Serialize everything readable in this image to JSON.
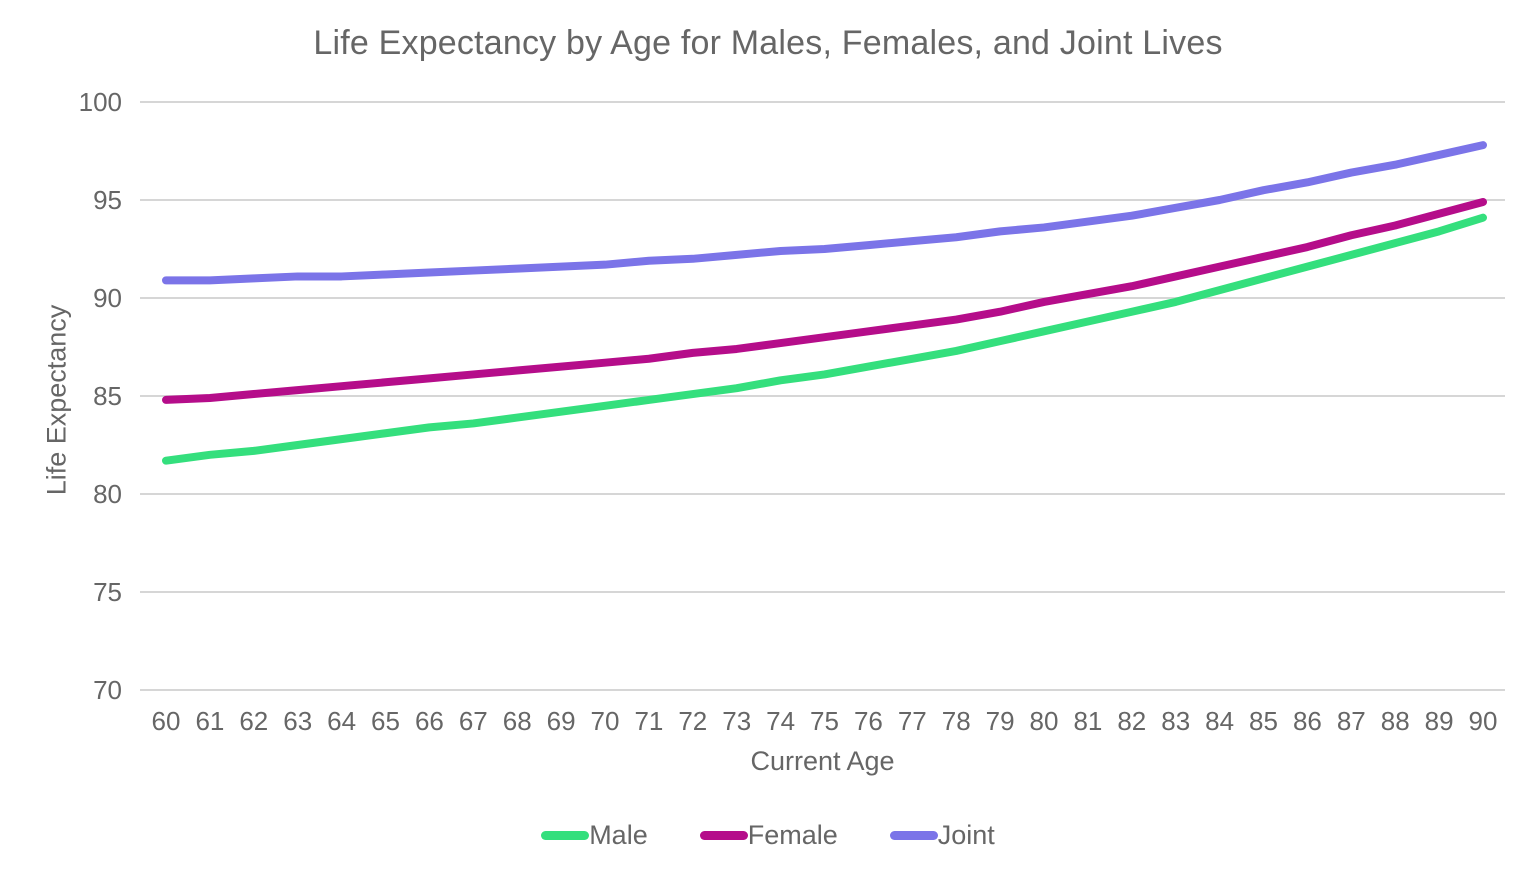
{
  "chart": {
    "title": "Life Expectancy by Age for Males, Females, and Joint Lives",
    "xlabel": "Current Age",
    "ylabel": "Life Expectancy"
  },
  "styles": {
    "background": "#ffffff",
    "text_color": "#666666",
    "grid_color": "#d6d6d6",
    "male_color": "#34df7d",
    "female_color": "#b50d8a",
    "joint_color": "#7b74e8"
  },
  "chart_data": {
    "type": "line",
    "title": "Life Expectancy by Age for Males, Females, and Joint Lives",
    "xlabel": "Current Age",
    "ylabel": "Life Expectancy",
    "x": [
      60,
      61,
      62,
      63,
      64,
      65,
      66,
      67,
      68,
      69,
      70,
      71,
      72,
      73,
      74,
      75,
      76,
      77,
      78,
      79,
      80,
      81,
      82,
      83,
      84,
      85,
      86,
      87,
      88,
      89,
      90
    ],
    "series": [
      {
        "name": "Male",
        "color": "#34df7d",
        "values": [
          81.7,
          82.0,
          82.2,
          82.5,
          82.8,
          83.1,
          83.4,
          83.6,
          83.9,
          84.2,
          84.5,
          84.8,
          85.1,
          85.4,
          85.8,
          86.1,
          86.5,
          86.9,
          87.3,
          87.8,
          88.3,
          88.8,
          89.3,
          89.8,
          90.4,
          91.0,
          91.6,
          92.2,
          92.8,
          93.4,
          94.1
        ]
      },
      {
        "name": "Female",
        "color": "#b50d8a",
        "values": [
          84.8,
          84.9,
          85.1,
          85.3,
          85.5,
          85.7,
          85.9,
          86.1,
          86.3,
          86.5,
          86.7,
          86.9,
          87.2,
          87.4,
          87.7,
          88.0,
          88.3,
          88.6,
          88.9,
          89.3,
          89.8,
          90.2,
          90.6,
          91.1,
          91.6,
          92.1,
          92.6,
          93.2,
          93.7,
          94.3,
          94.9
        ]
      },
      {
        "name": "Joint",
        "color": "#7b74e8",
        "values": [
          90.9,
          90.9,
          91.0,
          91.1,
          91.1,
          91.2,
          91.3,
          91.4,
          91.5,
          91.6,
          91.7,
          91.9,
          92.0,
          92.2,
          92.4,
          92.5,
          92.7,
          92.9,
          93.1,
          93.4,
          93.6,
          93.9,
          94.2,
          94.6,
          95.0,
          95.5,
          95.9,
          96.4,
          96.8,
          97.3,
          97.8
        ]
      }
    ],
    "ylim": [
      70,
      100
    ],
    "yticks": [
      70,
      75,
      80,
      85,
      90,
      95,
      100
    ],
    "grid": true,
    "legend_position": "bottom"
  }
}
